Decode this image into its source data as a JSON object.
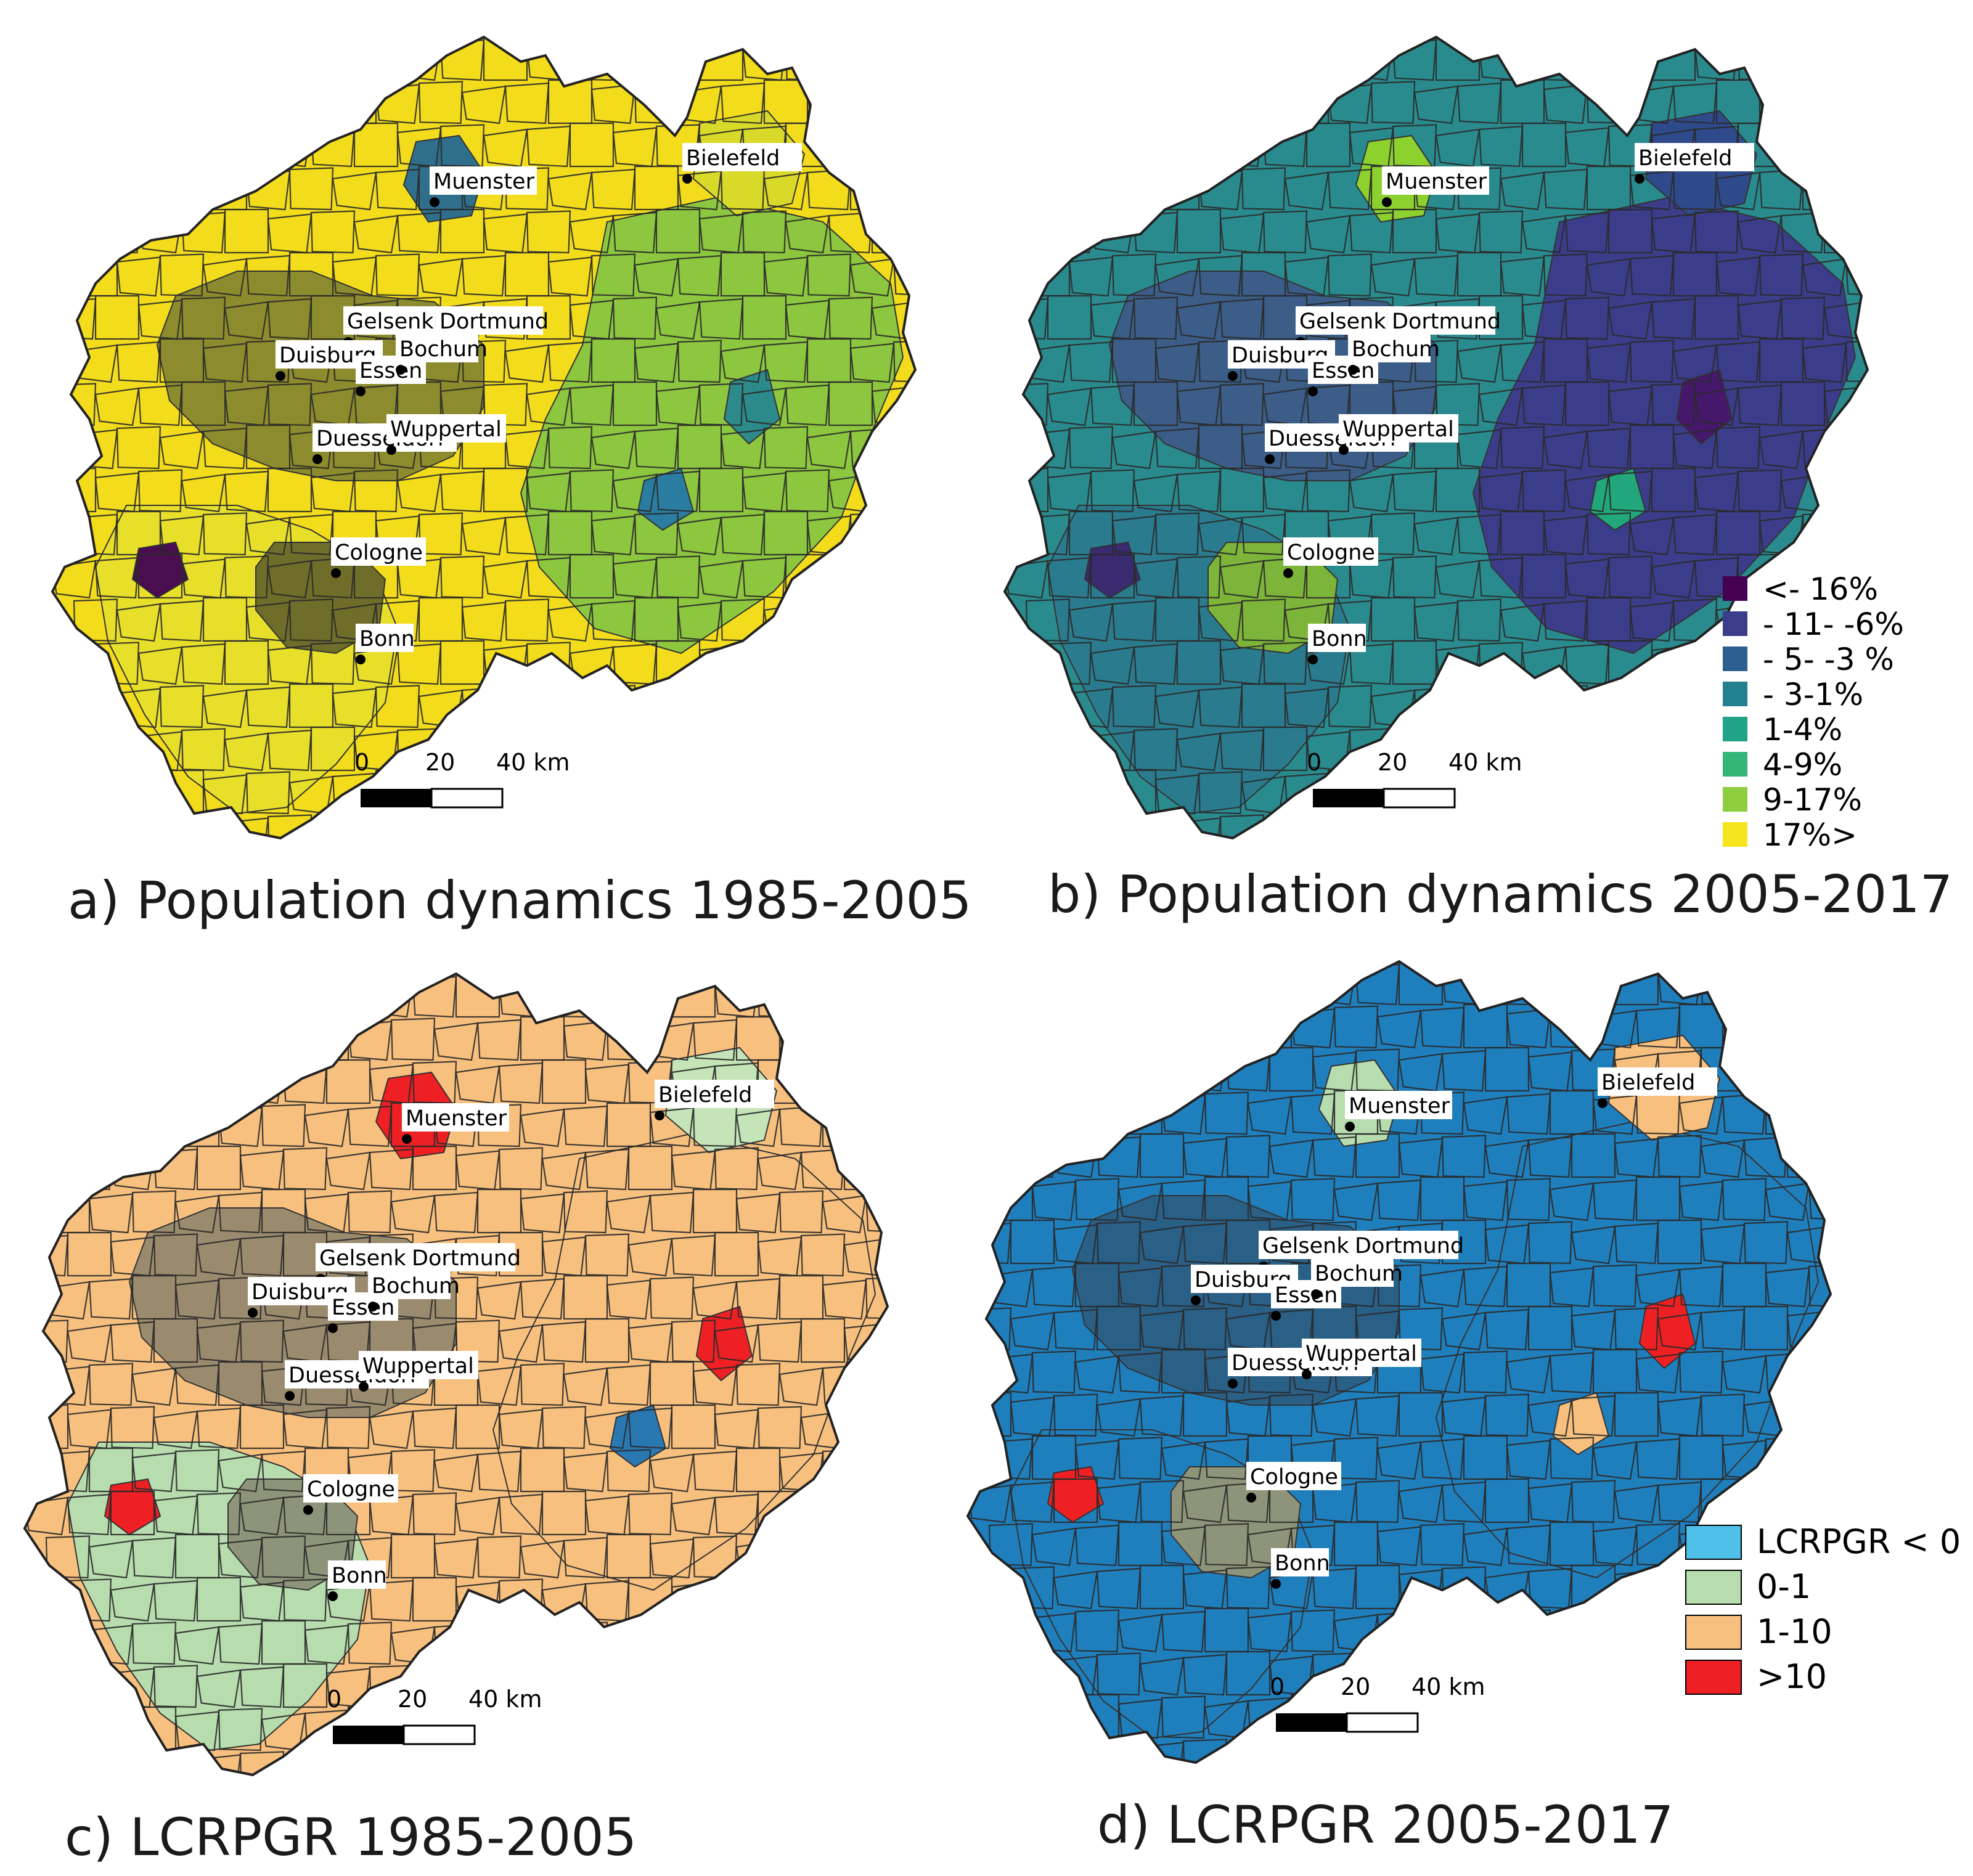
{
  "panels": [
    {
      "id": "a",
      "title": "a) Population dynamics 1985-2005",
      "base_color": "#f3dc1c",
      "zones": [
        {
          "region": "urban_core",
          "color": "#8c8b2d"
        },
        {
          "region": "east",
          "color": "#8dc63f"
        },
        {
          "region": "south",
          "color": "#e7df2a"
        },
        {
          "region": "cologne",
          "color": "#6f6d2a"
        },
        {
          "region": "muenster",
          "color": "#2f6f8b"
        },
        {
          "region": "bielefeld",
          "color": "#d9d92a"
        },
        {
          "region": "spot1",
          "color": "#4a0d4f"
        },
        {
          "region": "spot2",
          "color": "#2d8a8a"
        },
        {
          "region": "spot3",
          "color": "#2a7ca0"
        }
      ]
    },
    {
      "id": "b",
      "title": "b) Population dynamics 2005-2017",
      "base_color": "#2a8b8e",
      "zones": [
        {
          "region": "urban_core",
          "color": "#3b5d87"
        },
        {
          "region": "east",
          "color": "#3b3d8a"
        },
        {
          "region": "south",
          "color": "#2a7b8e"
        },
        {
          "region": "cologne",
          "color": "#7db43a"
        },
        {
          "region": "muenster",
          "color": "#8dd12e"
        },
        {
          "region": "bielefeld",
          "color": "#2f4a8a"
        },
        {
          "region": "spot1",
          "color": "#3a2a6f"
        },
        {
          "region": "spot2",
          "color": "#45186b"
        },
        {
          "region": "spot3",
          "color": "#21a77b"
        }
      ],
      "legend": [
        {
          "label": "<- 16%",
          "color": "#440154"
        },
        {
          "label": "- 11- -6%",
          "color": "#3b3d8a"
        },
        {
          "label": "- 5- -3 %",
          "color": "#2d5f8e"
        },
        {
          "label": "- 3-1%",
          "color": "#23808e"
        },
        {
          "label": "1-4%",
          "color": "#20a386"
        },
        {
          "label": "4-9%",
          "color": "#34b679"
        },
        {
          "label": "9-17%",
          "color": "#8dcd3e"
        },
        {
          "label": "17%>",
          "color": "#f6e51c"
        }
      ]
    },
    {
      "id": "c",
      "title": "c) LCRPGR 1985-2005",
      "base_color": "#f8c07e",
      "zones": [
        {
          "region": "urban_core",
          "color": "#9b8b6e"
        },
        {
          "region": "east",
          "color": "#f8c07e"
        },
        {
          "region": "south",
          "color": "#b7dcae"
        },
        {
          "region": "cologne",
          "color": "#8e9479"
        },
        {
          "region": "muenster",
          "color": "#ee2024"
        },
        {
          "region": "bielefeld",
          "color": "#c5e4b8"
        },
        {
          "region": "spot1",
          "color": "#ee2024"
        },
        {
          "region": "spot2",
          "color": "#ee2024"
        },
        {
          "region": "spot3",
          "color": "#2a78b2"
        }
      ]
    },
    {
      "id": "d",
      "title": "d) LCRPGR 2005-2017",
      "base_color": "#1f7fbd",
      "zones": [
        {
          "region": "urban_core",
          "color": "#2a5f86"
        },
        {
          "region": "east",
          "color": "#1f7fbd"
        },
        {
          "region": "south",
          "color": "#1f7fbd"
        },
        {
          "region": "cologne",
          "color": "#8e9479"
        },
        {
          "region": "muenster",
          "color": "#b7dcae"
        },
        {
          "region": "bielefeld",
          "color": "#f8c07e"
        },
        {
          "region": "spot1",
          "color": "#ee2024"
        },
        {
          "region": "spot2",
          "color": "#ee2024"
        },
        {
          "region": "spot3",
          "color": "#f8c07e"
        }
      ],
      "legend": [
        {
          "label": "LCRPGR < 0",
          "color": "#4fc0ea"
        },
        {
          "label": "0-1",
          "color": "#b7dcae"
        },
        {
          "label": "1-10",
          "color": "#f8c07e"
        },
        {
          "label": ">10",
          "color": "#ee2024"
        }
      ]
    }
  ],
  "cities": [
    "Muenster",
    "Bielefeld",
    "Gelsenkirchen",
    "Dortmund",
    "Duisburg",
    "Essen",
    "Bochum",
    "Duesseldorf",
    "Wuppertal",
    "Cologne",
    "Bonn"
  ],
  "scale_bar": {
    "ticks": [
      "0",
      "20",
      "40 km"
    ]
  }
}
